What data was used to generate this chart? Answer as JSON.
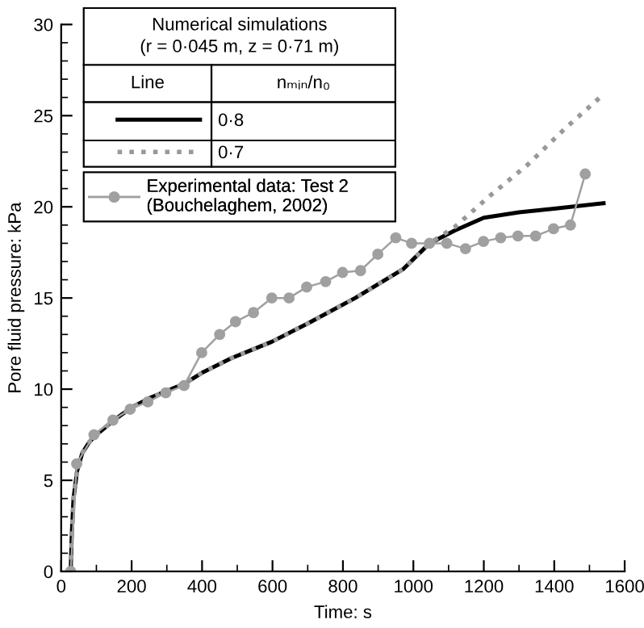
{
  "chart_data": {
    "type": "line",
    "xlabel": "Time: s",
    "ylabel": "Pore fluid pressure: kPa",
    "xlim": [
      0,
      1600
    ],
    "xticks": [
      0,
      200,
      400,
      600,
      800,
      1000,
      1200,
      1400,
      1600
    ],
    "ylim": [
      0,
      30
    ],
    "yticks": [
      0,
      5,
      10,
      15,
      20,
      25,
      30
    ],
    "grid": false,
    "legend": "top left",
    "legend_title": "Numerical simulations\n(r = 0·045 m, z = 0·71 m)",
    "annotations": [
      "Line",
      "nₘᵢₙ/n₀"
    ],
    "series": [
      {
        "name": "0·8",
        "color": "#000000",
        "line_style": "solid",
        "marker": "none",
        "x": [
          27,
          30,
          35,
          45,
          60,
          80,
          100,
          150,
          200,
          250,
          300,
          350,
          400,
          483,
          598,
          700,
          835,
          972,
          1046,
          1118,
          1200,
          1300,
          1400,
          1540
        ],
        "values": [
          0,
          2.0,
          4.0,
          5.5,
          6.5,
          7.1,
          7.5,
          8.3,
          9.0,
          9.5,
          9.9,
          10.3,
          10.9,
          11.7,
          12.6,
          13.6,
          15.0,
          16.6,
          18.0,
          18.7,
          19.4,
          19.7,
          19.9,
          20.2
        ]
      },
      {
        "name": "0·7",
        "color": "#999999",
        "line_style": "dotted",
        "marker": "none",
        "x": [
          27,
          30,
          35,
          45,
          60,
          80,
          100,
          150,
          200,
          250,
          300,
          350,
          400,
          483,
          598,
          700,
          835,
          972,
          1046,
          1118,
          1217,
          1324,
          1431,
          1530
        ],
        "values": [
          0,
          2.0,
          4.0,
          5.5,
          6.5,
          7.1,
          7.5,
          8.3,
          9.0,
          9.5,
          9.9,
          10.3,
          10.9,
          11.7,
          12.6,
          13.6,
          15.0,
          16.6,
          18.0,
          18.9,
          20.6,
          22.3,
          24.3,
          26.0
        ]
      },
      {
        "name": "Experimental data: Test 2\n(Bouchelaghem, 2002)",
        "color": "#a0a0a0",
        "line_style": "solid",
        "marker": "circle",
        "x": [
          27,
          44,
          93,
          147,
          196,
          246,
          297,
          349,
          399,
          450,
          495,
          546,
          598,
          647,
          697,
          751,
          799,
          850,
          899,
          950,
          995,
          1046,
          1095,
          1148,
          1199,
          1248,
          1297,
          1347,
          1398,
          1446,
          1488
        ],
        "values": [
          0,
          5.9,
          7.5,
          8.3,
          8.9,
          9.3,
          9.8,
          10.2,
          12.0,
          13.0,
          13.7,
          14.2,
          15.0,
          15.0,
          15.6,
          15.9,
          16.4,
          16.5,
          17.4,
          18.3,
          18.0,
          18.0,
          18.0,
          17.7,
          18.1,
          18.3,
          18.4,
          18.4,
          18.8,
          19.0,
          21.8
        ]
      }
    ]
  }
}
